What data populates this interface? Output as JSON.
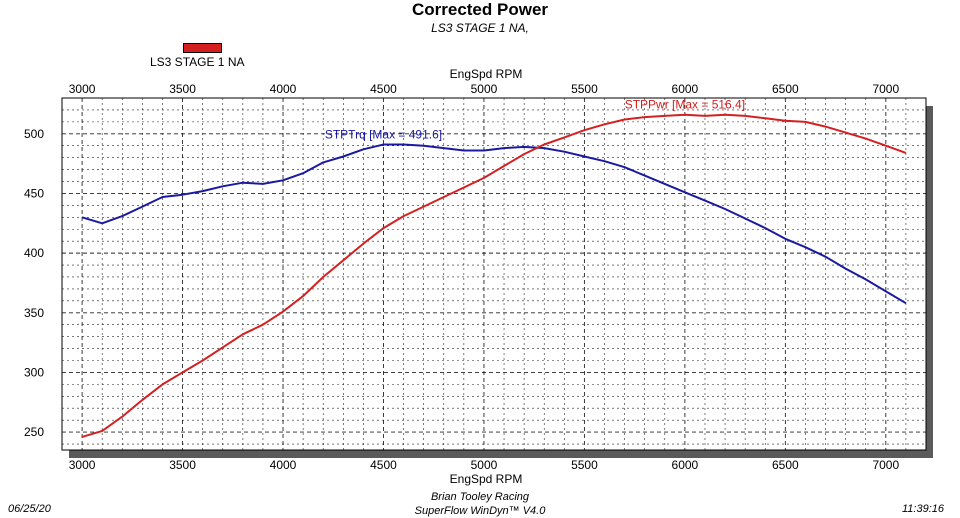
{
  "chart_data": {
    "type": "line",
    "title": "Corrected Power",
    "subtitle": "LS3 STAGE 1 NA,",
    "legend": [
      {
        "label": "LS3 STAGE 1 NA",
        "color": "#d42020"
      }
    ],
    "xlabel_top": "EngSpd RPM",
    "xlabel_bottom": "EngSpd RPM",
    "xlim": [
      2900,
      7200
    ],
    "ylim": [
      235,
      530
    ],
    "x_ticks": [
      3000,
      3500,
      4000,
      4500,
      5000,
      5500,
      6000,
      6500,
      7000
    ],
    "y_ticks": [
      250,
      300,
      350,
      400,
      450,
      500
    ],
    "grid": true,
    "series": [
      {
        "name": "STPTrq",
        "annotation": "STPTrq [Max = 491.6]",
        "color": "#1a1aa0",
        "x": [
          3000,
          3100,
          3200,
          3300,
          3400,
          3500,
          3600,
          3700,
          3800,
          3900,
          4000,
          4100,
          4200,
          4300,
          4400,
          4500,
          4600,
          4700,
          4800,
          4900,
          5000,
          5100,
          5200,
          5300,
          5400,
          5500,
          5600,
          5700,
          5800,
          5900,
          6000,
          6100,
          6200,
          6300,
          6400,
          6500,
          6600,
          6700,
          6800,
          6900,
          7000,
          7100
        ],
        "y": [
          430,
          425,
          431,
          439,
          447,
          449,
          452,
          456,
          459,
          458,
          461,
          467,
          476,
          481,
          487,
          491,
          491,
          490,
          488,
          486,
          486,
          488,
          489,
          488,
          485,
          481,
          477,
          472,
          465,
          458,
          451,
          444,
          437,
          429,
          421,
          412,
          405,
          397,
          387,
          378,
          368,
          358
        ]
      },
      {
        "name": "STPPwr",
        "annotation": "STPPwr [Max = 516.4]",
        "color": "#d42020",
        "x": [
          3000,
          3100,
          3200,
          3300,
          3400,
          3500,
          3600,
          3700,
          3800,
          3900,
          4000,
          4100,
          4200,
          4300,
          4400,
          4500,
          4600,
          4700,
          4800,
          4900,
          5000,
          5100,
          5200,
          5300,
          5400,
          5500,
          5600,
          5700,
          5800,
          5900,
          6000,
          6100,
          6200,
          6300,
          6400,
          6500,
          6600,
          6700,
          6800,
          6900,
          7000,
          7100
        ],
        "y": [
          246,
          251,
          263,
          277,
          290,
          300,
          310,
          321,
          332,
          340,
          351,
          364,
          380,
          394,
          408,
          421,
          431,
          439,
          447,
          455,
          463,
          473,
          483,
          491,
          497,
          503,
          508,
          512,
          514,
          515,
          516,
          515,
          516,
          515,
          513,
          511,
          510,
          506,
          501,
          496,
          490,
          484
        ]
      }
    ]
  },
  "footer": {
    "date": "06/25/20",
    "company": "Brian Tooley Racing",
    "software": "SuperFlow WinDyn™ V4.0",
    "time": "11:39:16"
  }
}
